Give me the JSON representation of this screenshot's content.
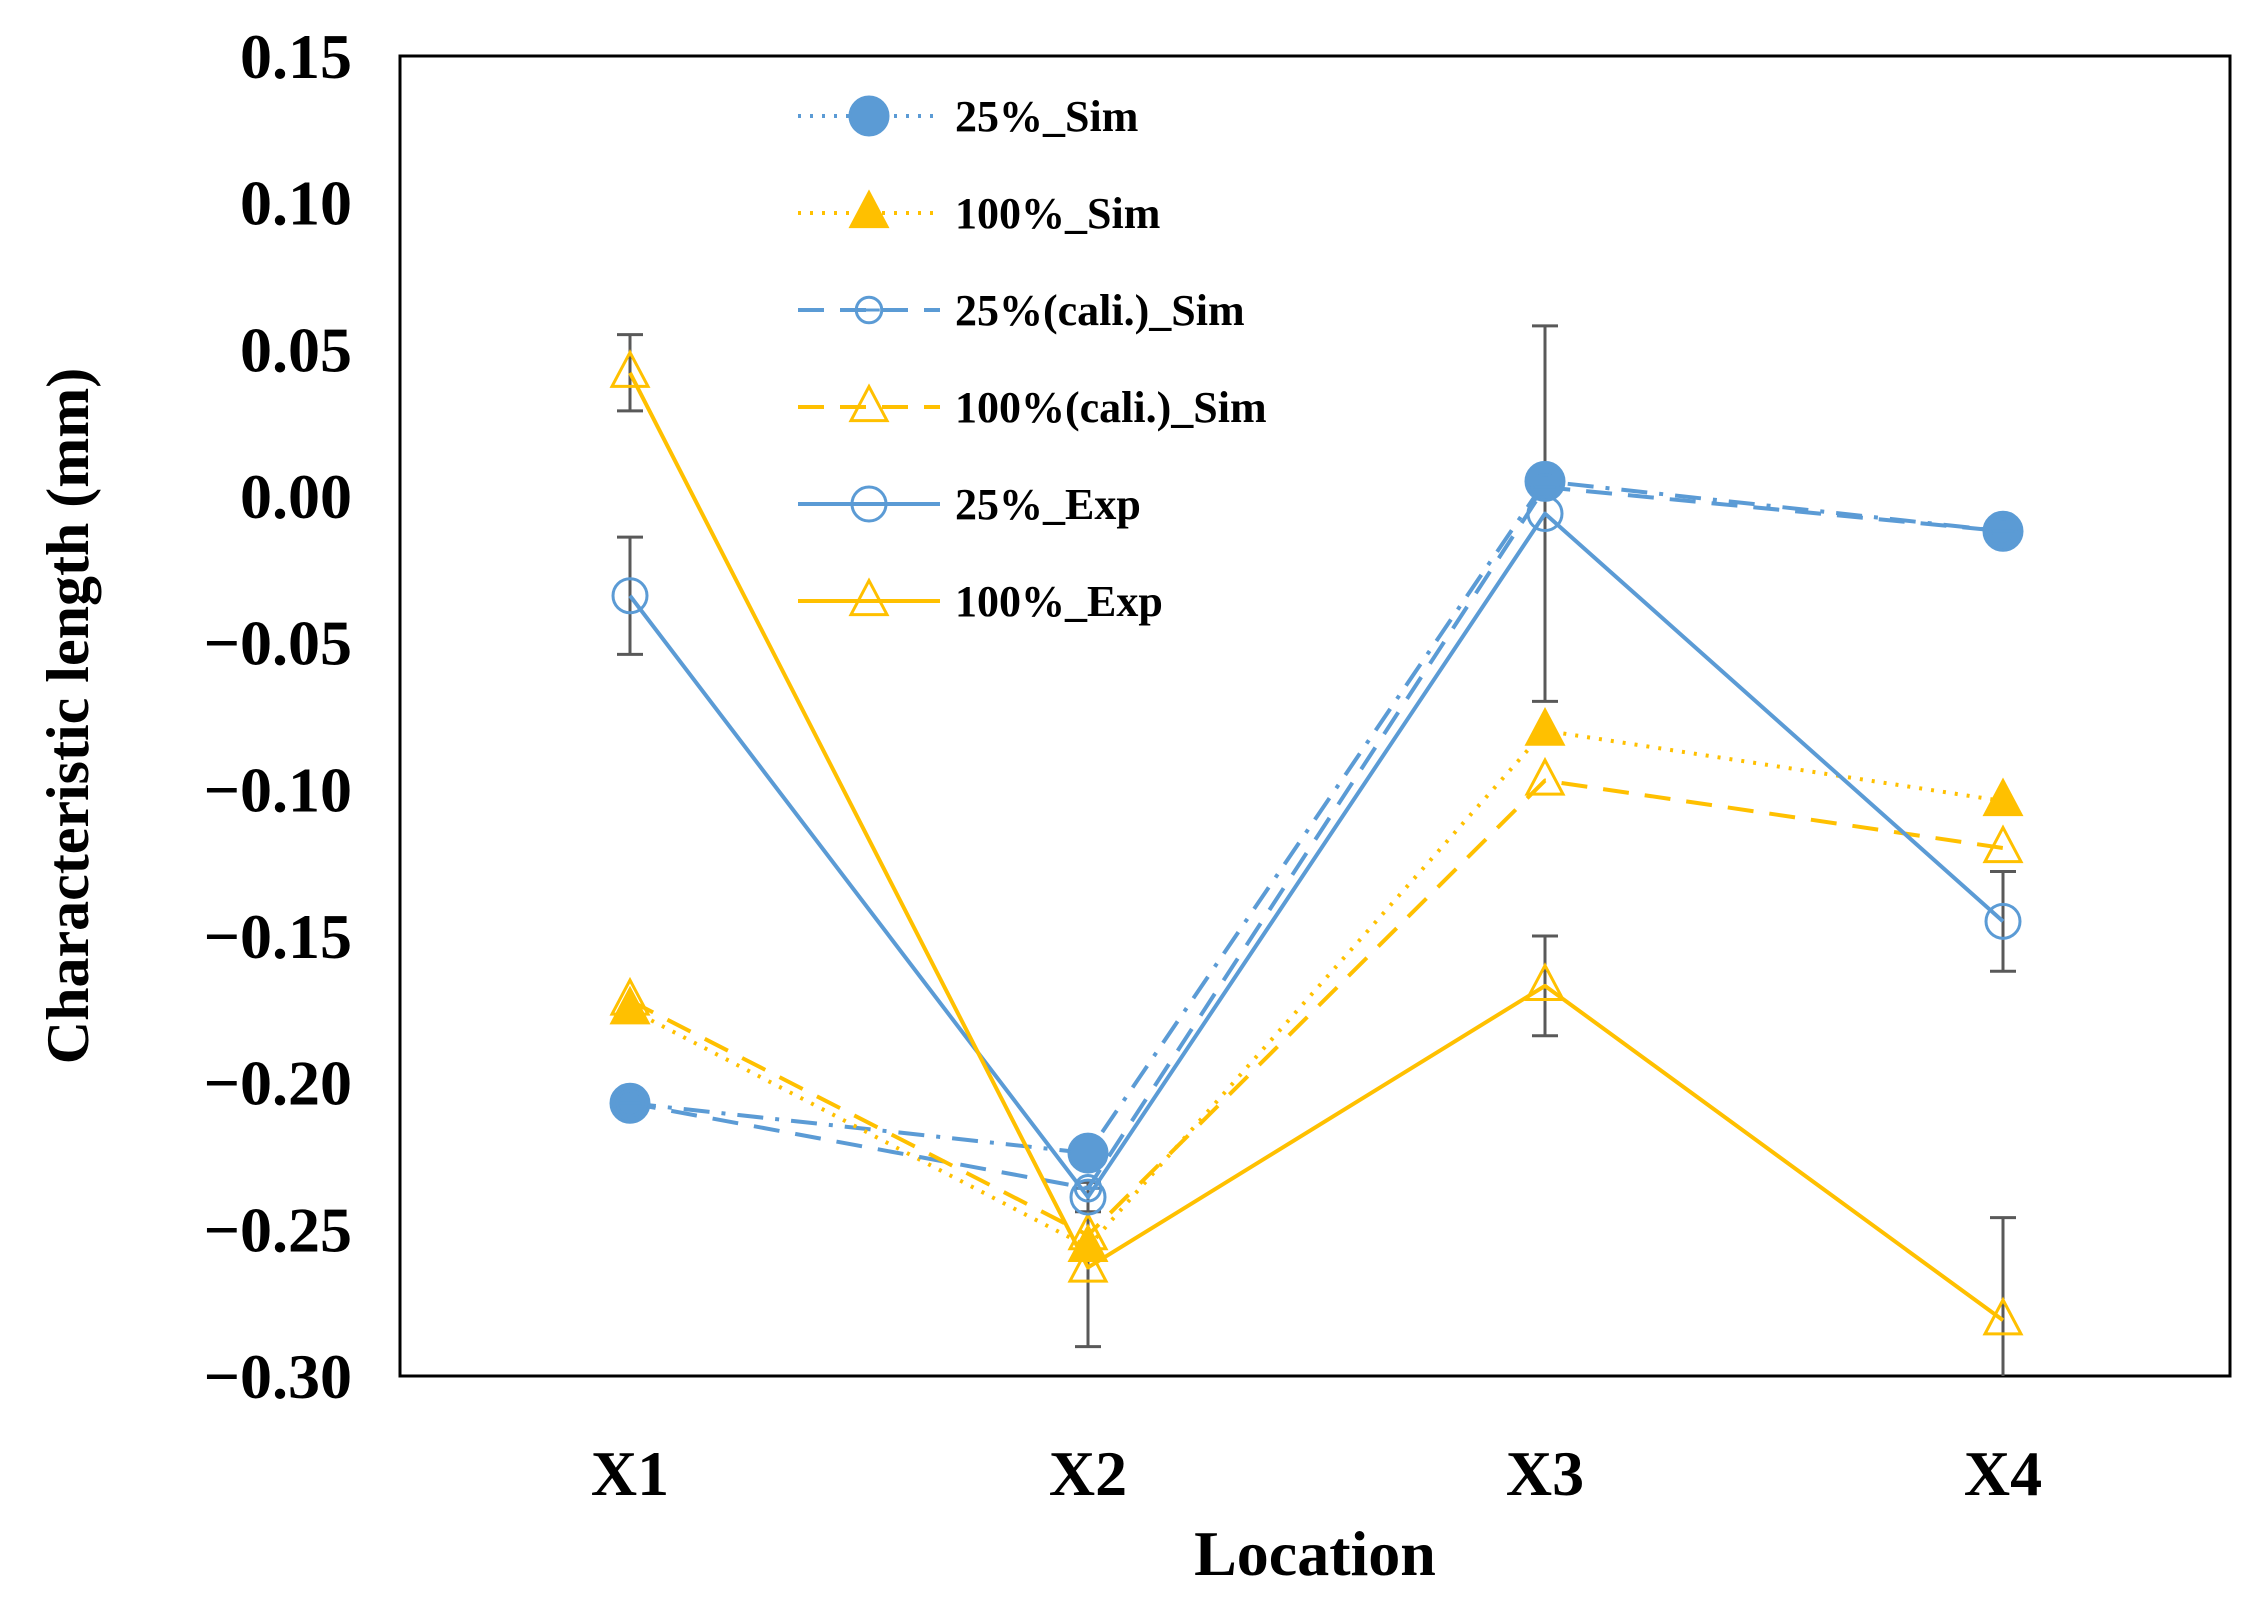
{
  "chart_data": {
    "type": "line",
    "title": "",
    "xlabel": "Location",
    "ylabel": "Characteristic length (mm)",
    "categories": [
      "X1",
      "X2",
      "X3",
      "X4"
    ],
    "ylim": [
      -0.3,
      0.15
    ],
    "yticks": [
      0.15,
      0.1,
      0.05,
      0.0,
      -0.05,
      -0.1,
      -0.15,
      -0.2,
      -0.25,
      -0.3
    ],
    "ytick_labels": [
      "0.15",
      "0.10",
      "0.05",
      "0.00",
      "−0.05",
      "−0.10",
      "−0.15",
      "−0.20",
      "−0.25",
      "−0.30"
    ],
    "grid": false,
    "legend_position": "top-left",
    "series": [
      {
        "name": "25%_Sim",
        "color": "#5b9bd5",
        "line": "dashdot",
        "marker": "circle",
        "marker_fill": "filled",
        "marker_scale": 1.0,
        "legend_line": "dotted",
        "values": [
          -0.207,
          -0.224,
          0.005,
          -0.012
        ]
      },
      {
        "name": "100%_Sim",
        "color": "#ffc000",
        "line": "dotted",
        "marker": "triangle",
        "marker_fill": "filled",
        "marker_scale": 1.0,
        "legend_line": "dotted",
        "values": [
          -0.175,
          -0.256,
          -0.08,
          -0.104
        ]
      },
      {
        "name": "25%(cali.)_Sim",
        "color": "#5b9bd5",
        "line": "dashed",
        "marker": "circle-half",
        "marker_fill": "open",
        "marker_scale": 0.75,
        "legend_line": "dashed",
        "values": [
          -0.207,
          -0.236,
          0.003,
          -0.012
        ]
      },
      {
        "name": "100%(cali.)_Sim",
        "color": "#ffc000",
        "line": "dashed",
        "marker": "triangle",
        "marker_fill": "open",
        "marker_scale": 1.0,
        "legend_line": "dashed",
        "values": [
          -0.172,
          -0.252,
          -0.097,
          -0.12
        ]
      },
      {
        "name": "25%_Exp",
        "color": "#5b9bd5",
        "line": "solid",
        "marker": "circle",
        "marker_fill": "open",
        "marker_scale": 1.0,
        "legend_line": "solid",
        "values": [
          -0.034,
          -0.239,
          -0.006,
          -0.145
        ],
        "errors": [
          0.02,
          0.005,
          0.064,
          0.017
        ]
      },
      {
        "name": "100%_Exp",
        "color": "#ffc000",
        "line": "solid",
        "marker": "triangle",
        "marker_fill": "open",
        "marker_scale": 1.0,
        "legend_line": "solid",
        "values": [
          0.042,
          -0.263,
          -0.167,
          -0.281
        ],
        "errors": [
          0.013,
          0.027,
          0.017,
          0.035
        ]
      }
    ]
  }
}
